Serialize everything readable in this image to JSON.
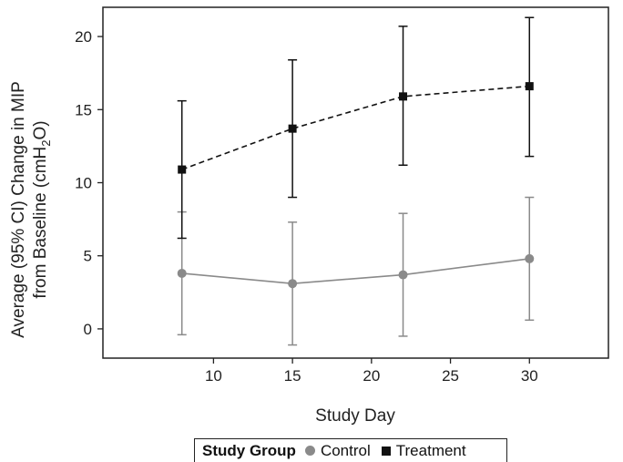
{
  "chart_data": {
    "type": "line",
    "xlabel": "Study Day",
    "ylabel_line1": "Average (95% CI) Change in MIP",
    "ylabel_line2_prefix": "from Baseline (cmH",
    "ylabel_line2_sub": "2",
    "ylabel_line2_suffix": "O)",
    "xlim": [
      3,
      35
    ],
    "ylim": [
      -2,
      22
    ],
    "xticks": [
      10,
      15,
      20,
      25,
      30
    ],
    "yticks": [
      0,
      5,
      10,
      15,
      20
    ],
    "legend": {
      "title": "Study Group",
      "placement": "bottom",
      "entries": [
        "Control",
        "Treatment"
      ]
    },
    "series": [
      {
        "name": "Control",
        "color": "#8a8a8a",
        "marker": "circle",
        "line": "solid",
        "x": [
          8,
          15,
          22,
          30
        ],
        "y": [
          3.8,
          3.1,
          3.7,
          4.8
        ],
        "lower": [
          -0.4,
          -1.1,
          -0.5,
          0.6
        ],
        "upper": [
          8.0,
          7.3,
          7.9,
          9.0
        ]
      },
      {
        "name": "Treatment",
        "color": "#111111",
        "marker": "square",
        "line": "dashed",
        "x": [
          8,
          15,
          22,
          30
        ],
        "y": [
          10.9,
          13.7,
          15.9,
          16.6
        ],
        "lower": [
          6.2,
          9.0,
          11.2,
          11.8
        ],
        "upper": [
          15.6,
          18.4,
          20.7,
          21.3
        ]
      }
    ]
  }
}
